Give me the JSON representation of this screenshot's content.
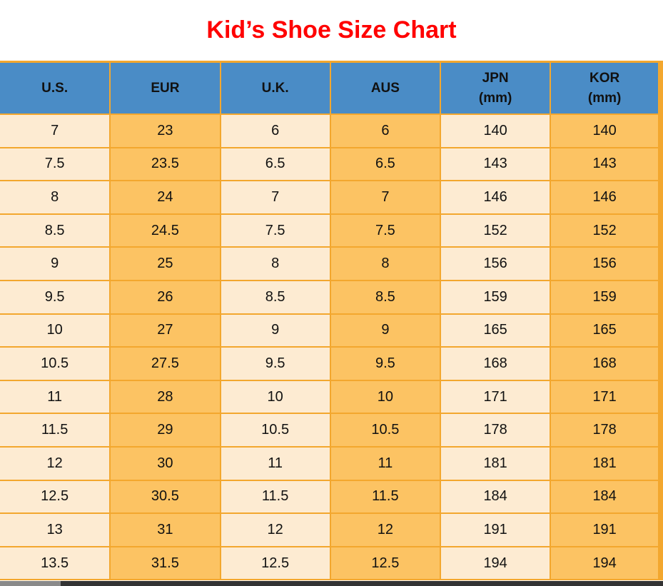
{
  "title": "Kid’s Shoe Size Chart",
  "colors": {
    "title_red": "#FF0000",
    "header_blue": "#4A8CC6",
    "cell_cream": "#FDEBD2",
    "cell_orange": "#FCC363",
    "border_orange": "#F3A72E",
    "text_black": "#111111",
    "scrollbar_track": "#8A8A8A",
    "scrollbar_thumb": "#333333"
  },
  "table": {
    "columns": [
      {
        "label": "U.S.",
        "sub": ""
      },
      {
        "label": "EUR",
        "sub": ""
      },
      {
        "label": "U.K.",
        "sub": ""
      },
      {
        "label": "AUS",
        "sub": ""
      },
      {
        "label": "JPN",
        "sub": "(mm)"
      },
      {
        "label": "KOR",
        "sub": "(mm)"
      }
    ],
    "rows": [
      [
        "7",
        "23",
        "6",
        "6",
        "140",
        "140"
      ],
      [
        "7.5",
        "23.5",
        "6.5",
        "6.5",
        "143",
        "143"
      ],
      [
        "8",
        "24",
        "7",
        "7",
        "146",
        "146"
      ],
      [
        "8.5",
        "24.5",
        "7.5",
        "7.5",
        "152",
        "152"
      ],
      [
        "9",
        "25",
        "8",
        "8",
        "156",
        "156"
      ],
      [
        "9.5",
        "26",
        "8.5",
        "8.5",
        "159",
        "159"
      ],
      [
        "10",
        "27",
        "9",
        "9",
        "165",
        "165"
      ],
      [
        "10.5",
        "27.5",
        "9.5",
        "9.5",
        "168",
        "168"
      ],
      [
        "11",
        "28",
        "10",
        "10",
        "171",
        "171"
      ],
      [
        "11.5",
        "29",
        "10.5",
        "10.5",
        "178",
        "178"
      ],
      [
        "12",
        "30",
        "11",
        "11",
        "181",
        "181"
      ],
      [
        "12.5",
        "30.5",
        "11.5",
        "11.5",
        "184",
        "184"
      ],
      [
        "13",
        "31",
        "12",
        "12",
        "191",
        "191"
      ],
      [
        "13.5",
        "31.5",
        "12.5",
        "12.5",
        "194",
        "194"
      ]
    ]
  },
  "chart_data": {
    "type": "table",
    "title": "Kid’s Shoe Size Chart",
    "columns": [
      "U.S.",
      "EUR",
      "U.K.",
      "AUS",
      "JPN (mm)",
      "KOR (mm)"
    ],
    "rows": [
      [
        "7",
        "23",
        "6",
        "6",
        "140",
        "140"
      ],
      [
        "7.5",
        "23.5",
        "6.5",
        "6.5",
        "143",
        "143"
      ],
      [
        "8",
        "24",
        "7",
        "7",
        "146",
        "146"
      ],
      [
        "8.5",
        "24.5",
        "7.5",
        "7.5",
        "152",
        "152"
      ],
      [
        "9",
        "25",
        "8",
        "8",
        "156",
        "156"
      ],
      [
        "9.5",
        "26",
        "8.5",
        "8.5",
        "159",
        "159"
      ],
      [
        "10",
        "27",
        "9",
        "9",
        "165",
        "165"
      ],
      [
        "10.5",
        "27.5",
        "9.5",
        "9.5",
        "168",
        "168"
      ],
      [
        "11",
        "28",
        "10",
        "10",
        "171",
        "171"
      ],
      [
        "11.5",
        "29",
        "10.5",
        "10.5",
        "178",
        "178"
      ],
      [
        "12",
        "30",
        "11",
        "11",
        "181",
        "181"
      ],
      [
        "12.5",
        "30.5",
        "11.5",
        "11.5",
        "184",
        "184"
      ],
      [
        "13",
        "31",
        "12",
        "12",
        "191",
        "191"
      ],
      [
        "13.5",
        "31.5",
        "12.5",
        "12.5",
        "194",
        "194"
      ]
    ],
    "layout": {
      "header_background": "#4A8CC6",
      "column_backgrounds_alternate": [
        "#FDEBD2",
        "#FCC363"
      ],
      "grid_color": "#F3A72E",
      "title_color": "#FF0000",
      "title_position": "top-center"
    }
  }
}
